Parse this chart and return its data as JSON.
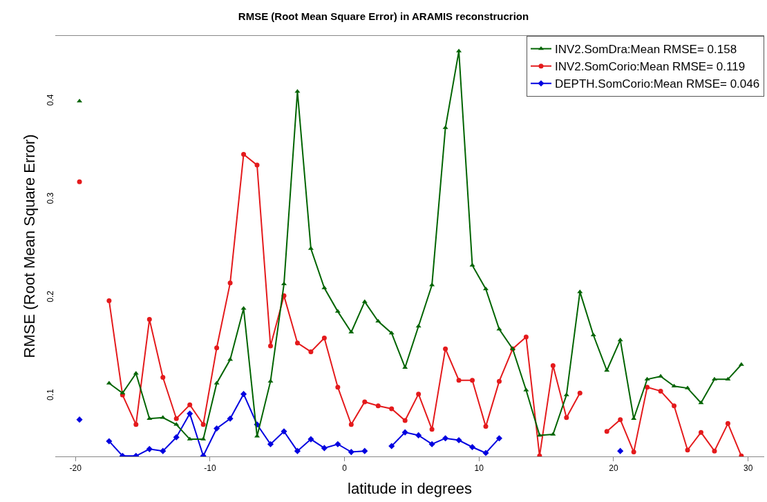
{
  "chart_data": {
    "type": "line",
    "title": "RMSE (Root Mean Square Error) in ARAMIS reconstrucrion",
    "xlabel": "latitude in degrees",
    "ylabel": "RMSE (Root Mean Square Error)",
    "x": [
      -19.7,
      -18.5,
      -17.5,
      -16.5,
      -15.5,
      -14.5,
      -13.5,
      -12.5,
      -11.5,
      -10.5,
      -9.5,
      -8.5,
      -7.5,
      -6.5,
      -5.5,
      -4.5,
      -3.5,
      -2.5,
      -1.5,
      -0.5,
      0.5,
      1.5,
      2.5,
      3.5,
      4.5,
      5.5,
      6.5,
      7.5,
      8.5,
      9.5,
      10.5,
      11.5,
      12.5,
      13.5,
      14.5,
      15.5,
      16.5,
      17.5,
      18.5,
      19.5,
      20.5,
      21.5,
      22.5,
      23.5,
      24.5,
      25.5,
      26.5,
      27.5,
      28.5,
      29.5
    ],
    "series": [
      {
        "name": "INV2.SomDra:Mean RMSE= 0.158",
        "color": "#006400",
        "marker": "triangle",
        "values": [
          0.4,
          null,
          0.113,
          0.103,
          0.123,
          0.077,
          0.078,
          0.071,
          0.056,
          0.056,
          0.113,
          0.137,
          0.189,
          0.059,
          0.115,
          0.214,
          0.41,
          0.25,
          0.21,
          0.186,
          0.165,
          0.196,
          0.176,
          0.164,
          0.129,
          0.171,
          0.213,
          0.373,
          0.451,
          0.233,
          0.209,
          0.168,
          0.148,
          0.106,
          0.06,
          0.061,
          0.101,
          0.206,
          0.162,
          0.126,
          0.157,
          0.077,
          0.117,
          0.12,
          0.11,
          0.108,
          0.093,
          0.117,
          0.117,
          0.132
        ]
      },
      {
        "name": "INV2.SomCorio:Mean RMSE= 0.119",
        "color": "#e41a1c",
        "marker": "circle",
        "values": [
          0.318,
          null,
          0.197,
          0.101,
          0.071,
          0.178,
          0.119,
          0.077,
          0.091,
          0.071,
          0.149,
          0.215,
          0.346,
          0.335,
          0.151,
          0.202,
          0.154,
          0.145,
          0.159,
          0.109,
          0.071,
          0.094,
          0.09,
          0.087,
          0.075,
          0.102,
          0.066,
          0.148,
          0.116,
          0.116,
          0.069,
          0.115,
          0.148,
          0.16,
          0.039,
          0.131,
          0.078,
          0.103,
          null,
          0.064,
          0.076,
          0.043,
          0.109,
          0.105,
          0.09,
          0.045,
          0.063,
          0.044,
          0.072,
          0.039
        ]
      },
      {
        "name": "DEPTH.SomCorio:Mean RMSE= 0.046",
        "color": "#0000e0",
        "marker": "diamond",
        "values": [
          0.076,
          null,
          0.054,
          0.039,
          0.039,
          0.046,
          0.044,
          0.058,
          0.082,
          0.039,
          0.067,
          0.077,
          0.102,
          0.071,
          0.051,
          0.064,
          0.044,
          0.056,
          0.047,
          0.051,
          0.043,
          0.044,
          null,
          0.049,
          0.063,
          0.06,
          0.051,
          0.057,
          0.055,
          0.048,
          0.042,
          0.057,
          null,
          null,
          null,
          null,
          null,
          null,
          null,
          null,
          0.044,
          null,
          null,
          null,
          null,
          null,
          null,
          null,
          null,
          null
        ]
      }
    ],
    "xlim": [
      -21.5,
      31.2
    ],
    "xticks": [
      -20,
      -10,
      0,
      10,
      20,
      30
    ],
    "ylim": [
      0.0385,
      0.4665
    ],
    "yticks": [
      0.1,
      0.2,
      0.3,
      0.4
    ],
    "grid": false,
    "legend": "top right",
    "line_style": "solid"
  }
}
